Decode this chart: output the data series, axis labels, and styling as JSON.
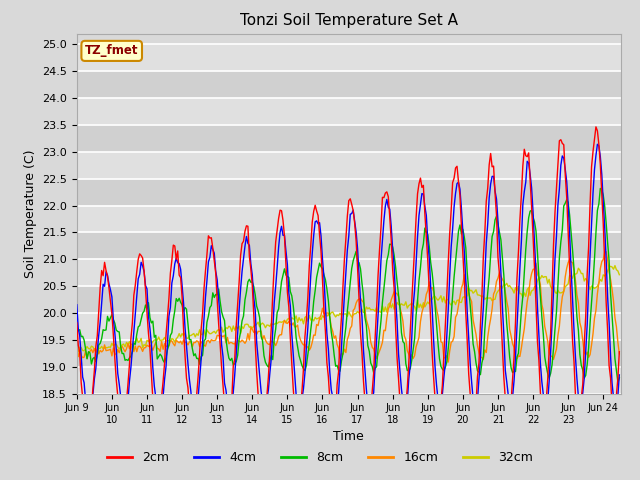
{
  "title": "Tonzi Soil Temperature Set A",
  "xlabel": "Time",
  "ylabel": "Soil Temperature (C)",
  "ylim": [
    18.5,
    25.2
  ],
  "background_color": "#d9d9d9",
  "plot_bg_color": "#d9d9d9",
  "grid_color": "#ffffff",
  "series_colors": {
    "2cm": "#ff0000",
    "4cm": "#0000ff",
    "8cm": "#00bb00",
    "16cm": "#ff8800",
    "32cm": "#cccc00"
  },
  "series_labels": [
    "2cm",
    "4cm",
    "8cm",
    "16cm",
    "32cm"
  ],
  "xtick_labels": [
    "Jun 9",
    "Jun\n10",
    "Jun\n11",
    "Jun\n12",
    "Jun\n13",
    "Jun\n14",
    "Jun\n15",
    "Jun\n16",
    "Jun\n17",
    "Jun\n18",
    "Jun\n19",
    "Jun\n20",
    "Jun\n21",
    "Jun\n22",
    "Jun\n23",
    "Jun 24"
  ],
  "annotation_text": "TZ_fmet",
  "annotation_bg": "#ffffcc",
  "annotation_border": "#cc8800",
  "line_width": 1.0
}
